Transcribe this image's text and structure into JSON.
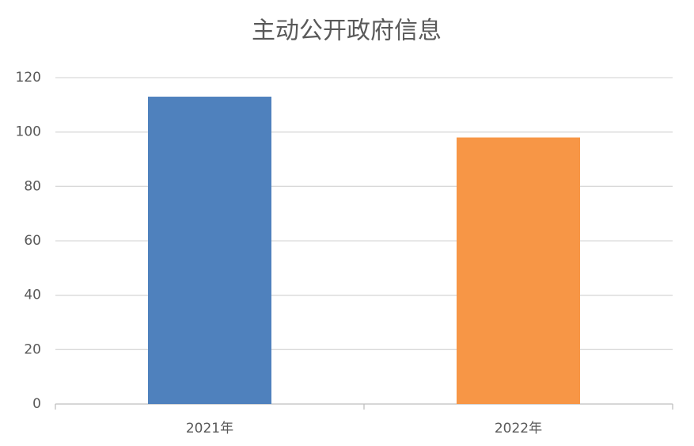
{
  "chart_data": {
    "type": "bar",
    "title": "主动公开政府信息",
    "categories": [
      "2021年",
      "2022年"
    ],
    "values": [
      113,
      98
    ],
    "colors": [
      "#4f81bd",
      "#f79646"
    ],
    "ylim": [
      0,
      120
    ],
    "yticks": [
      0,
      20,
      40,
      60,
      80,
      100,
      120
    ],
    "grid": true
  }
}
